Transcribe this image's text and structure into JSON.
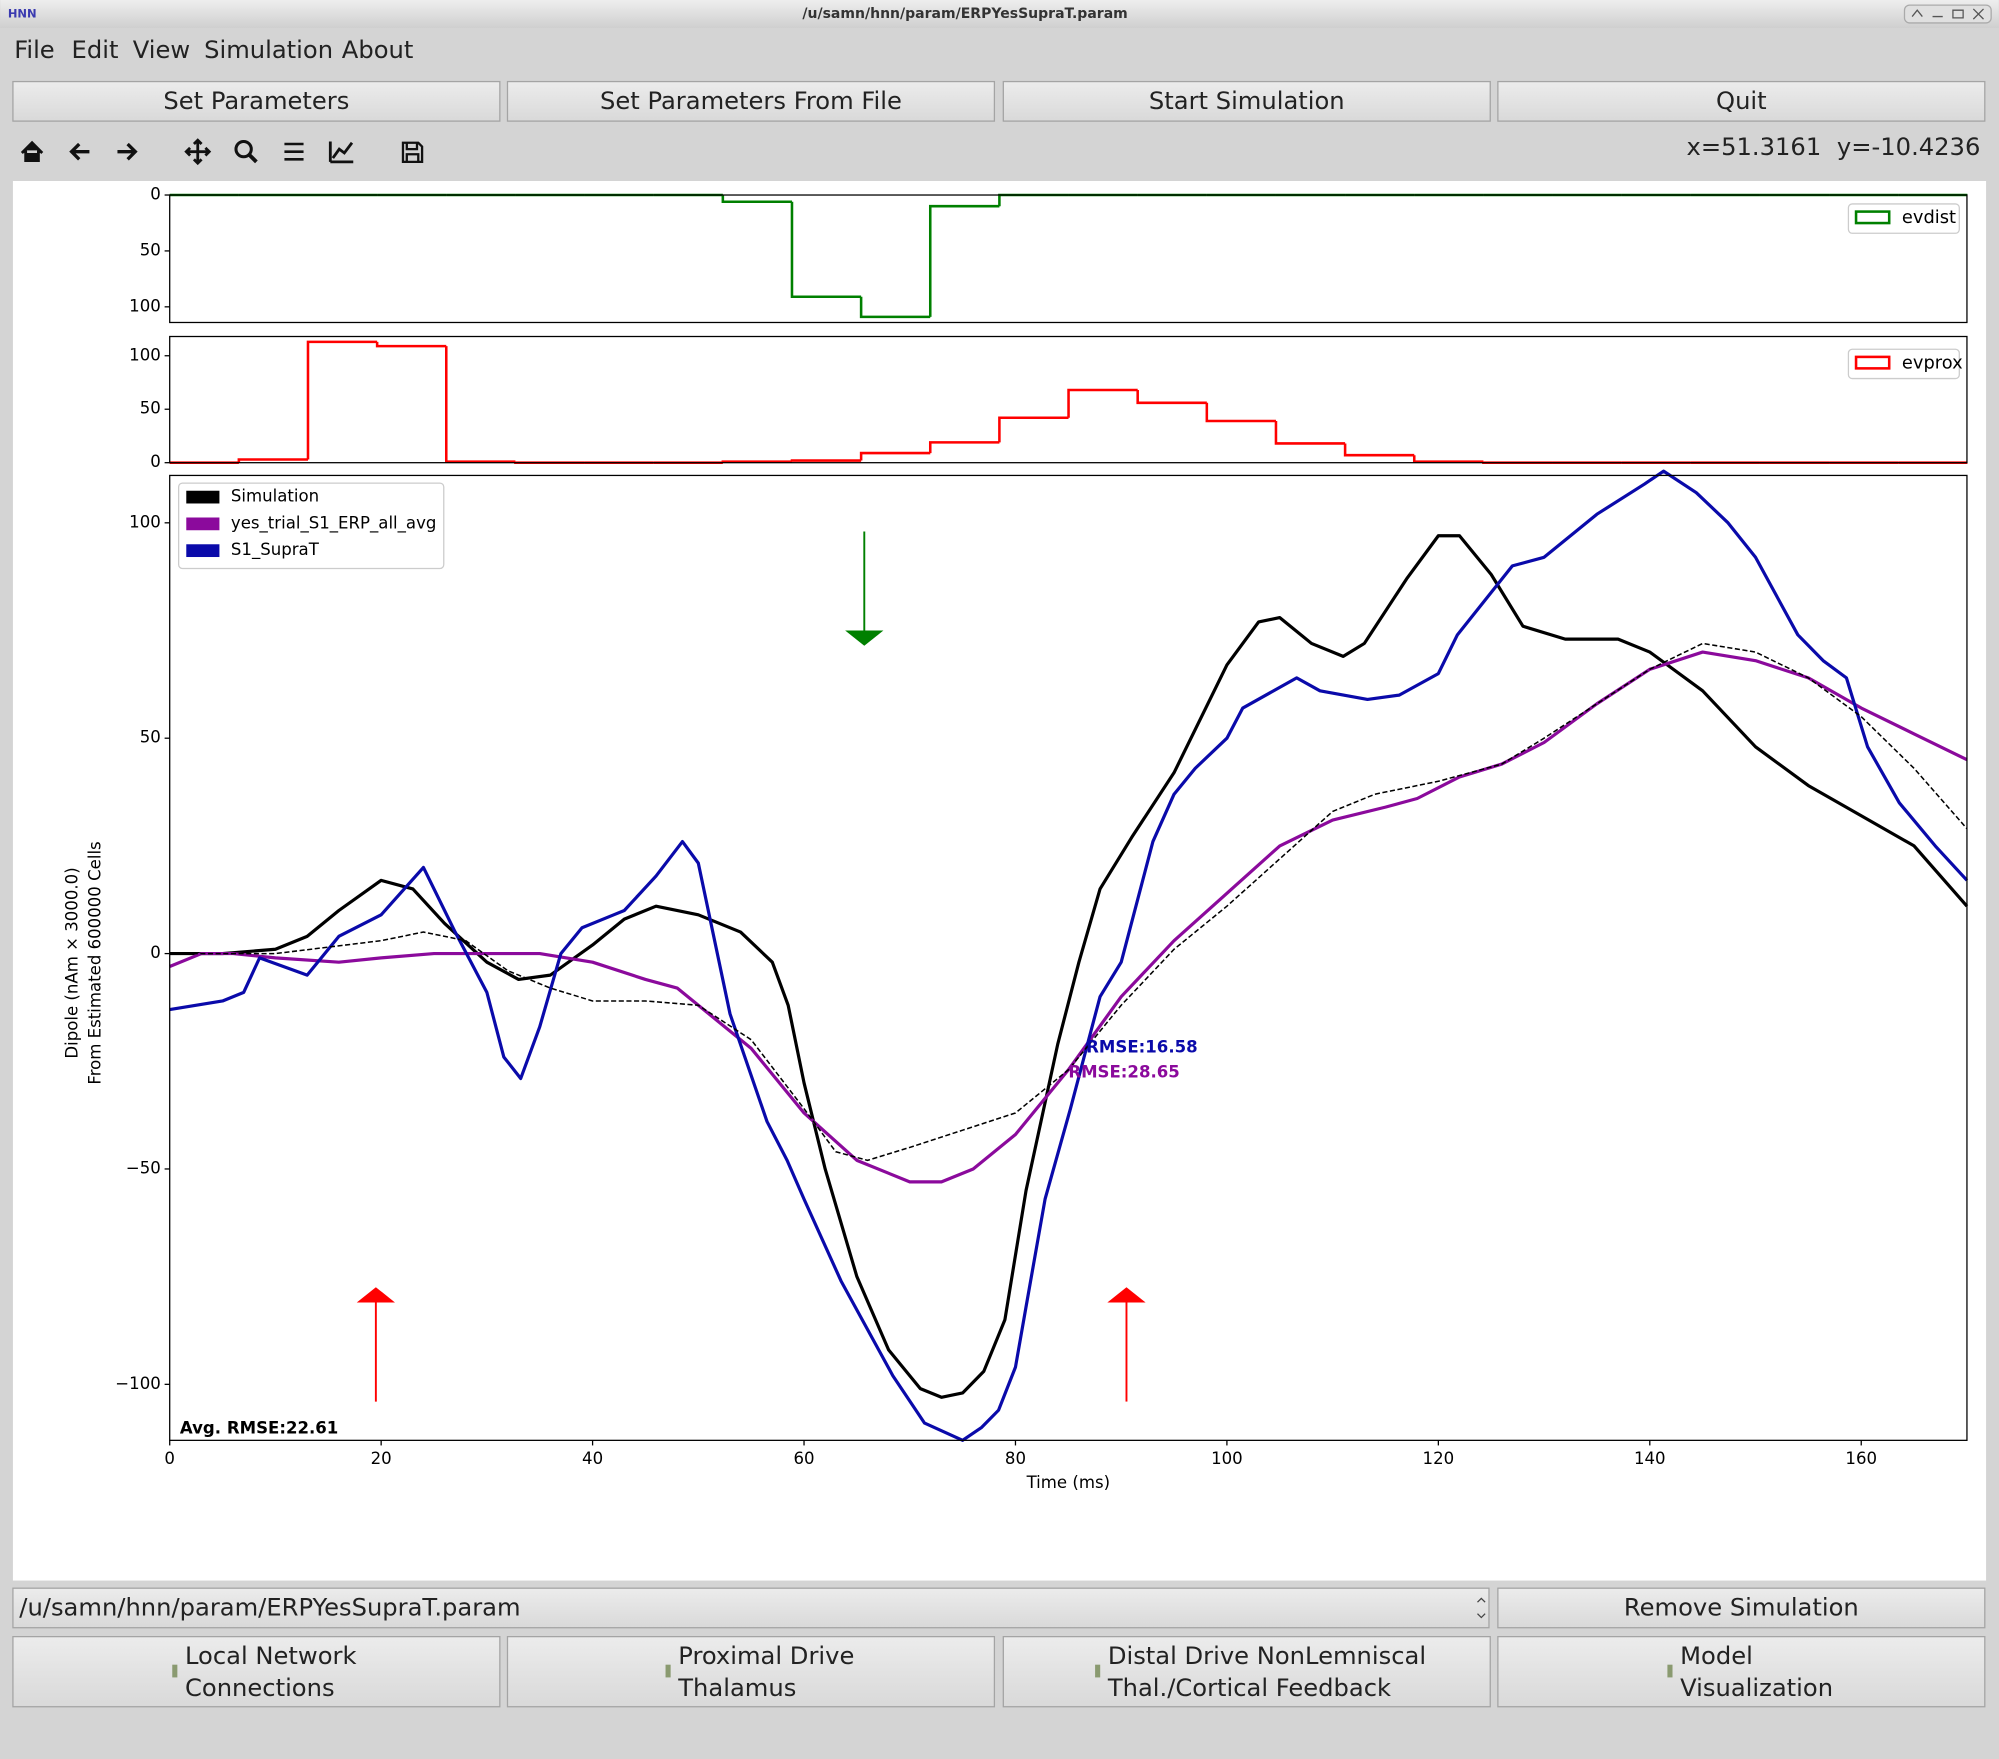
{
  "window": {
    "title": "/u/samn/hnn/param/ERPYesSupraT.param",
    "icon": "HNN"
  },
  "menu": [
    "File",
    "Edit",
    "View",
    "Simulation",
    "About"
  ],
  "buttons": [
    "Set Parameters",
    "Set Parameters From File",
    "Start Simulation",
    "Quit"
  ],
  "toolbar": {
    "x_coord": "x=51.3161",
    "y_coord": "y=-10.4236"
  },
  "chart_data": [
    {
      "type": "histogram",
      "label": "evdist",
      "color": "#008000",
      "legend": "upper right",
      "y_inverted": true,
      "bins": [
        0,
        6.54,
        13.08,
        19.62,
        26.16,
        32.7,
        39.24,
        45.78,
        52.32,
        58.86,
        65.4,
        71.94,
        78.48,
        85.02,
        91.56,
        98.1,
        104.64,
        111.18,
        117.72,
        124.26,
        130.8,
        137.34,
        143.88,
        150.42,
        156.96,
        163.5,
        170.04
      ],
      "values": [
        0,
        0,
        0,
        0,
        0,
        0,
        0,
        0,
        6,
        91,
        109,
        10,
        0,
        0,
        0,
        0,
        0,
        0,
        0,
        0,
        0,
        0,
        0,
        0,
        0,
        0
      ],
      "xlim": [
        0,
        170
      ],
      "ylim": [
        0,
        114
      ],
      "yticks": [
        0,
        50,
        100
      ]
    },
    {
      "type": "histogram",
      "label": "evprox",
      "color": "#ff0000",
      "legend": "upper right",
      "y_inverted": false,
      "bins": [
        0,
        6.54,
        13.08,
        19.62,
        26.16,
        32.7,
        39.24,
        45.78,
        52.32,
        58.86,
        65.4,
        71.94,
        78.48,
        85.02,
        91.56,
        98.1,
        104.64,
        111.18,
        117.72,
        124.26,
        130.8,
        137.34,
        143.88,
        150.42,
        156.96,
        163.5,
        170.04
      ],
      "values": [
        0,
        3,
        113,
        109,
        1,
        0,
        0,
        0,
        1,
        2,
        9,
        19,
        42,
        68,
        56,
        39,
        18,
        7,
        1,
        0,
        0,
        0,
        0,
        0,
        0,
        0
      ],
      "xlim": [
        0,
        170
      ],
      "ylim": [
        0,
        118
      ],
      "yticks": [
        0,
        50,
        100
      ]
    },
    {
      "type": "line",
      "xlabel": "Time (ms)",
      "ylabel": [
        "Dipole (nAm × 3000.0)",
        "From Estimated 600000 Cells"
      ],
      "xlim": [
        0,
        170
      ],
      "ylim": [
        -113,
        111
      ],
      "xticks": [
        0,
        20,
        40,
        60,
        80,
        100,
        120,
        140,
        160
      ],
      "yticks": [
        {
          "value": -100,
          "label": "−100"
        },
        {
          "value": -50,
          "label": "−50"
        },
        0,
        50,
        100
      ],
      "legend": "upper left",
      "series": [
        {
          "name": "Simulation",
          "color": "#000000",
          "x": [
            0,
            5,
            10,
            13,
            16,
            20,
            23,
            26,
            30,
            33,
            36,
            40,
            43,
            46,
            50,
            54,
            57,
            58.5,
            60,
            62,
            65,
            68,
            71,
            73,
            75,
            77,
            79,
            81,
            84,
            86,
            88,
            91,
            95,
            100,
            103,
            105,
            108,
            111,
            113,
            117,
            120,
            122,
            125,
            128,
            132,
            137,
            140,
            145,
            150,
            155,
            160,
            165,
            170
          ],
          "values": [
            0,
            0,
            1,
            4,
            10,
            17,
            15,
            7,
            -2,
            -6,
            -5,
            2,
            8,
            11,
            9,
            5,
            -2,
            -12,
            -30,
            -50,
            -75,
            -92,
            -101,
            -103,
            -102,
            -97,
            -85,
            -55,
            -21,
            -2,
            15,
            27,
            42,
            67,
            77,
            78,
            72,
            69,
            72,
            87,
            97,
            97,
            88,
            76,
            73,
            73,
            70,
            61,
            48,
            39,
            32,
            25,
            11
          ]
        },
        {
          "name": "yes_trial_S1_ERP_all_avg",
          "color": "#8b0a9c",
          "x": [
            0,
            3,
            6,
            10,
            16,
            20,
            25,
            30,
            35,
            40,
            45,
            48,
            50,
            55,
            60,
            65,
            70,
            73,
            76,
            80,
            85,
            90,
            95,
            100,
            105,
            110,
            115,
            118,
            122,
            126,
            130,
            135,
            140,
            145,
            150,
            155,
            160,
            165,
            170
          ],
          "values": [
            -3,
            0,
            0,
            -1,
            -2,
            -1,
            0,
            0,
            0,
            -2,
            -6,
            -8,
            -12,
            -22,
            -37,
            -48,
            -53,
            -53,
            -50,
            -42,
            -27,
            -10,
            3,
            14,
            25,
            31,
            34,
            36,
            41,
            44,
            49,
            58,
            66,
            70,
            68,
            64,
            57,
            51,
            45
          ]
        },
        {
          "name": "S1_SupraT",
          "color": "#0a0aaa",
          "x": [
            0,
            5,
            7,
            8.5,
            13,
            16,
            20,
            24,
            27,
            30,
            31.6,
            33.2,
            35,
            37,
            39,
            42,
            43,
            46,
            48.5,
            50,
            53,
            56.5,
            58.4,
            60,
            63.5,
            68.4,
            71.4,
            75,
            76.8,
            78.4,
            80,
            81,
            82.8,
            85.2,
            88,
            90,
            93,
            95,
            97,
            100,
            101.5,
            106.6,
            108.8,
            113.3,
            116.3,
            120,
            121.8,
            127,
            130,
            135,
            139.5,
            141.3,
            144.4,
            147.4,
            150,
            154,
            156.4,
            158.6,
            160.6,
            163.6,
            167,
            170
          ],
          "values": [
            -13,
            -11,
            -9,
            -1,
            -5,
            4,
            9,
            20,
            5,
            -9,
            -24,
            -29,
            -17,
            0,
            6,
            9,
            10,
            18,
            26,
            21,
            -14,
            -39,
            -48,
            -57,
            -76,
            -98,
            -109,
            -113,
            -110,
            -106,
            -96,
            -82,
            -57,
            -36,
            -10,
            -2,
            26,
            37,
            43,
            50,
            57,
            64,
            61,
            59,
            60,
            65,
            74,
            90,
            92,
            102,
            109,
            112,
            107,
            100,
            92,
            74,
            68,
            64,
            48,
            35,
            25,
            17
          ]
        },
        {
          "color": "#000000",
          "dashed": true,
          "x": [
            0,
            10,
            20,
            24,
            28,
            32,
            36,
            40,
            45,
            50,
            55,
            60,
            63,
            66,
            70,
            75,
            80,
            85,
            90,
            95,
            100,
            105,
            110,
            114,
            120,
            126,
            130,
            135,
            140,
            145,
            150,
            155,
            160,
            165,
            170
          ],
          "values": [
            0,
            0,
            3,
            5,
            3,
            -4,
            -8,
            -11,
            -11,
            -12,
            -20,
            -36,
            -46,
            -48,
            -45,
            -41,
            -37,
            -27,
            -12,
            1,
            11,
            22,
            33,
            37,
            40,
            44,
            50,
            58,
            66,
            72,
            70,
            64,
            55,
            43,
            29
          ]
        }
      ],
      "annotations": [
        {
          "text": "RMSE:16.58",
          "color": "#0a0aaa"
        },
        {
          "text": "RMSE:28.65",
          "color": "#8b0a9c"
        },
        {
          "text": "Avg. RMSE:22.61",
          "color": "#000000"
        }
      ],
      "arrows": [
        {
          "x": 19.5,
          "from": -104,
          "to": -81,
          "color": "#ff0000"
        },
        {
          "x": 90.5,
          "from": -104,
          "to": -81,
          "color": "#ff0000"
        },
        {
          "x": 65.7,
          "from": 98,
          "to": 75,
          "color": "#008000"
        }
      ]
    }
  ],
  "bottom": {
    "file_select": "/u/samn/hnn/param/ERPYesSupraT.param",
    "remove_button": "Remove Simulation",
    "panels": [
      [
        "Local Network",
        "Connections"
      ],
      [
        "Proximal Drive",
        "Thalamus"
      ],
      [
        "Distal Drive NonLemniscal",
        "Thal./Cortical Feedback"
      ],
      [
        "Model",
        "Visualization"
      ]
    ]
  }
}
